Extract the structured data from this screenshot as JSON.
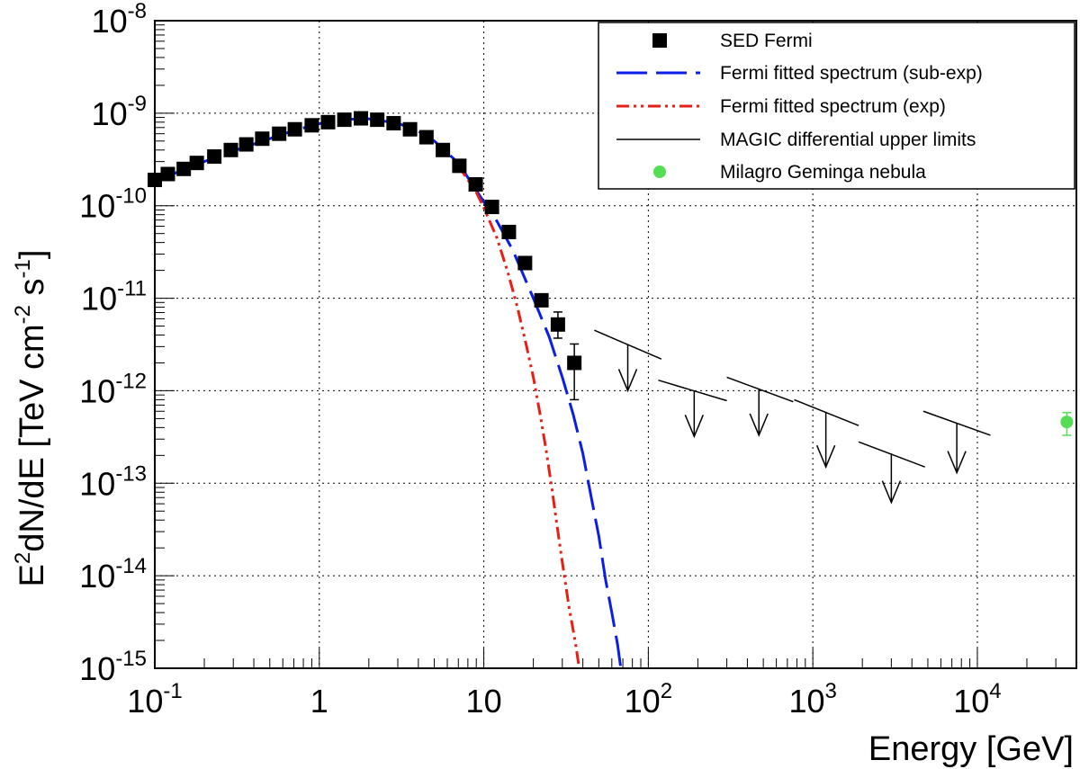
{
  "chart_data": {
    "type": "scatter",
    "title": "",
    "xlabel": "Energy [GeV]",
    "ylabel": {
      "parts": [
        {
          "t": "E",
          "sup": false
        },
        {
          "t": "2",
          "sup": true
        },
        {
          "t": "dN/dE [TeV cm",
          "sup": false
        },
        {
          "t": "-2",
          "sup": true
        },
        {
          "t": " s",
          "sup": false
        },
        {
          "t": "-1",
          "sup": true
        },
        {
          "t": "]",
          "sup": false
        }
      ]
    },
    "xscale": "log",
    "yscale": "log",
    "xlim": [
      0.1,
      40000
    ],
    "ylim": [
      1e-15,
      1e-08
    ],
    "grid": true,
    "legend_position": "top-right",
    "x_tick_labels": [
      {
        "value": 0.1,
        "base": "10",
        "exp": "-1"
      },
      {
        "value": 1,
        "base": "1",
        "exp": ""
      },
      {
        "value": 10,
        "base": "10",
        "exp": ""
      },
      {
        "value": 100,
        "base": "10",
        "exp": "2"
      },
      {
        "value": 1000,
        "base": "10",
        "exp": "3"
      },
      {
        "value": 10000,
        "base": "10",
        "exp": "4"
      }
    ],
    "y_tick_labels": [
      {
        "value": 1e-08,
        "base": "10",
        "exp": "-8"
      },
      {
        "value": 1e-09,
        "base": "10",
        "exp": "-9"
      },
      {
        "value": 1e-10,
        "base": "10",
        "exp": "-10"
      },
      {
        "value": 1e-11,
        "base": "10",
        "exp": "-11"
      },
      {
        "value": 1e-12,
        "base": "10",
        "exp": "-12"
      },
      {
        "value": 1e-13,
        "base": "10",
        "exp": "-13"
      },
      {
        "value": 1e-14,
        "base": "10",
        "exp": "-14"
      },
      {
        "value": 1e-15,
        "base": "10",
        "exp": "-15"
      }
    ],
    "legend": [
      {
        "label": "SED Fermi",
        "style": "square",
        "color": "#000000"
      },
      {
        "label": "Fermi fitted spectrum (sub-exp)",
        "style": "dashed",
        "color": "#0a1ee6"
      },
      {
        "label": "Fermi fitted spectrum (exp)",
        "style": "dashdot",
        "color": "#e61e14"
      },
      {
        "label": "MAGIC differential upper limits",
        "style": "line",
        "color": "#000000"
      },
      {
        "label": "Milagro Geminga nebula",
        "style": "circle",
        "color": "#55dd55"
      }
    ],
    "series": [
      {
        "name": "SED Fermi",
        "color": "#000000",
        "points": [
          {
            "x": 0.1,
            "y": 1.9e-10
          },
          {
            "x": 0.12,
            "y": 2.2e-10
          },
          {
            "x": 0.15,
            "y": 2.5e-10
          },
          {
            "x": 0.18,
            "y": 2.9e-10
          },
          {
            "x": 0.23,
            "y": 3.4e-10
          },
          {
            "x": 0.29,
            "y": 4e-10
          },
          {
            "x": 0.36,
            "y": 4.6e-10
          },
          {
            "x": 0.45,
            "y": 5.3e-10
          },
          {
            "x": 0.57,
            "y": 6e-10
          },
          {
            "x": 0.71,
            "y": 6.7e-10
          },
          {
            "x": 0.9,
            "y": 7.4e-10
          },
          {
            "x": 1.13,
            "y": 8e-10
          },
          {
            "x": 1.42,
            "y": 8.5e-10
          },
          {
            "x": 1.79,
            "y": 8.8e-10
          },
          {
            "x": 2.25,
            "y": 8.5e-10
          },
          {
            "x": 2.83,
            "y": 7.8e-10
          },
          {
            "x": 3.56,
            "y": 6.7e-10
          },
          {
            "x": 4.48,
            "y": 5.5e-10
          },
          {
            "x": 5.64,
            "y": 4e-10
          },
          {
            "x": 7.1,
            "y": 2.7e-10
          },
          {
            "x": 8.93,
            "y": 1.7e-10
          },
          {
            "x": 11.2,
            "y": 9.7e-11
          },
          {
            "x": 14.2,
            "y": 5.2e-11
          },
          {
            "x": 17.8,
            "y": 2.4e-11
          },
          {
            "x": 22.4,
            "y": 9.5e-12
          },
          {
            "x": 28.2,
            "y": 5.2e-12,
            "err_low": 3.7e-12,
            "err_high": 7.1e-12
          },
          {
            "x": 35.5,
            "y": 2e-12,
            "err_low": 8e-13,
            "err_high": 3.2e-12
          }
        ]
      },
      {
        "name": "Fermi fitted spectrum (sub-exp)",
        "style": "dashed",
        "color": "#0a1ee6",
        "points": [
          {
            "x": 0.1,
            "y": 1.75e-10
          },
          {
            "x": 0.15,
            "y": 2.5e-10
          },
          {
            "x": 0.2,
            "y": 3e-10
          },
          {
            "x": 0.3,
            "y": 3.9e-10
          },
          {
            "x": 0.5,
            "y": 5.3e-10
          },
          {
            "x": 0.7,
            "y": 6.5e-10
          },
          {
            "x": 1.0,
            "y": 7.7e-10
          },
          {
            "x": 1.5,
            "y": 8.6e-10
          },
          {
            "x": 2.0,
            "y": 8.7e-10
          },
          {
            "x": 3.0,
            "y": 7.8e-10
          },
          {
            "x": 4.0,
            "y": 6.4e-10
          },
          {
            "x": 5.0,
            "y": 5e-10
          },
          {
            "x": 7.0,
            "y": 2.9e-10
          },
          {
            "x": 10.0,
            "y": 1.1e-10
          },
          {
            "x": 12.0,
            "y": 6.8e-11
          },
          {
            "x": 15.0,
            "y": 3.3e-11
          },
          {
            "x": 20.0,
            "y": 1e-11
          },
          {
            "x": 25.0,
            "y": 3.8e-12
          },
          {
            "x": 30.0,
            "y": 1.4e-12
          },
          {
            "x": 35.0,
            "y": 5.5e-13
          },
          {
            "x": 40.0,
            "y": 2.1e-13
          },
          {
            "x": 45.0,
            "y": 7e-14
          },
          {
            "x": 50.0,
            "y": 2.7e-14
          },
          {
            "x": 55.0,
            "y": 9e-15
          },
          {
            "x": 60.0,
            "y": 4e-15
          },
          {
            "x": 65.0,
            "y": 1.8e-15
          },
          {
            "x": 68.0,
            "y": 1e-15
          }
        ]
      },
      {
        "name": "Fermi fitted spectrum (exp)",
        "style": "dashdot",
        "color": "#e61e14",
        "points": [
          {
            "x": 7.0,
            "y": 2.7e-10
          },
          {
            "x": 8.0,
            "y": 1.9e-10
          },
          {
            "x": 9.0,
            "y": 1.4e-10
          },
          {
            "x": 10.0,
            "y": 9.5e-11
          },
          {
            "x": 12.0,
            "y": 4.5e-11
          },
          {
            "x": 14.0,
            "y": 1.9e-11
          },
          {
            "x": 16.0,
            "y": 8e-12
          },
          {
            "x": 18.0,
            "y": 3.3e-12
          },
          {
            "x": 20.0,
            "y": 1.4e-12
          },
          {
            "x": 22.0,
            "y": 5.5e-13
          },
          {
            "x": 24.0,
            "y": 2.2e-13
          },
          {
            "x": 26.0,
            "y": 8.5e-14
          },
          {
            "x": 28.0,
            "y": 3.3e-14
          },
          {
            "x": 30.0,
            "y": 1.4e-14
          },
          {
            "x": 33.0,
            "y": 4.5e-15
          },
          {
            "x": 36.0,
            "y": 1.9e-15
          },
          {
            "x": 38.0,
            "y": 1e-15
          }
        ]
      },
      {
        "name": "MAGIC differential upper limits",
        "style": "upper-limits",
        "color": "#000000",
        "limits": [
          {
            "x": 75,
            "y": 3.2e-12,
            "x_from": 47,
            "y_from": 4.5e-12,
            "x_to": 120,
            "y_to": 2.2e-12,
            "arrow_to": 1e-12
          },
          {
            "x": 190,
            "y": 1e-12,
            "x_from": 115,
            "y_from": 1.3e-12,
            "x_to": 300,
            "y_to": 7.8e-13,
            "arrow_to": 3.2e-13
          },
          {
            "x": 470,
            "y": 1.05e-12,
            "x_from": 300,
            "y_from": 1.4e-12,
            "x_to": 760,
            "y_to": 7.6e-13,
            "arrow_to": 3.3e-13
          },
          {
            "x": 1200,
            "y": 5.9e-13,
            "x_from": 770,
            "y_from": 8e-13,
            "x_to": 1900,
            "y_to": 4.2e-13,
            "arrow_to": 1.5e-13
          },
          {
            "x": 3000,
            "y": 2.1e-13,
            "x_from": 1900,
            "y_from": 2.8e-13,
            "x_to": 4800,
            "y_to": 1.5e-13,
            "arrow_to": 6.2e-14
          },
          {
            "x": 7500,
            "y": 4.5e-13,
            "x_from": 4700,
            "y_from": 6e-13,
            "x_to": 12000,
            "y_to": 3.3e-13,
            "arrow_to": 1.3e-13
          }
        ]
      },
      {
        "name": "Milagro Geminga nebula",
        "color": "#55dd55",
        "points": [
          {
            "x": 35000,
            "y": 4.6e-13,
            "err_low": 3.3e-13,
            "err_high": 5.8e-13
          }
        ]
      }
    ]
  }
}
